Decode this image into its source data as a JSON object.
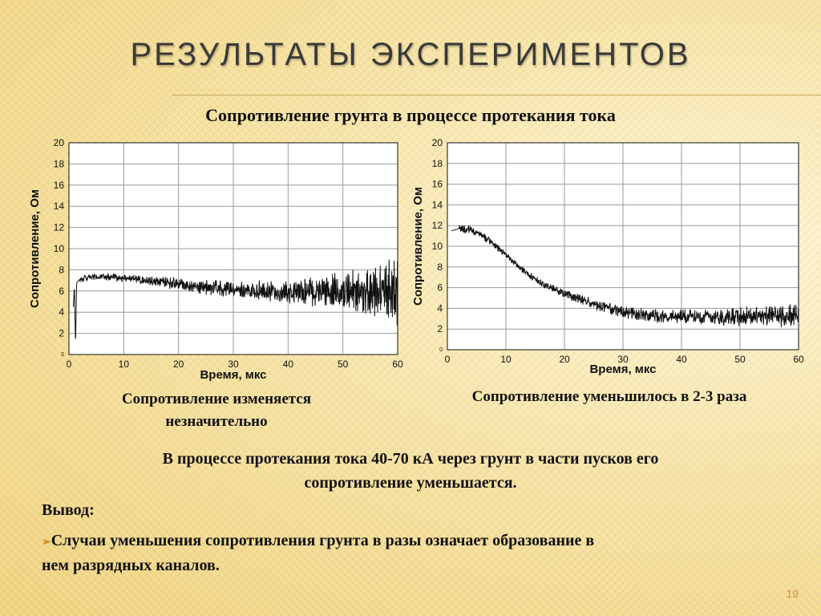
{
  "slide": {
    "title": "РЕЗУЛЬТАТЫ ЭКСПЕРИМЕНТОВ",
    "subtitle": "Сопротивление грунта в процессе протекания тока",
    "caption_left_line1": "Сопротивление изменяется",
    "caption_left_line2": "незначительно",
    "caption_right": "Сопротивление уменьшилось в 2-3 раза",
    "statement_line1": "В процессе протекания тока 40-70 кА через грунт в части пусков  его",
    "statement_line2": "сопротивление уменьшается.",
    "conclusion_label": "Вывод:",
    "bullet_marker": "➢",
    "bullet_line1": "Случаи уменьшения сопротивления грунта в разы означает образование в",
    "bullet_line2": "нем разрядных каналов.",
    "page_number": "19"
  },
  "chart_data": [
    {
      "type": "line",
      "ylabel": "Сопротивление, Ом",
      "xlabel": "Время, мкс",
      "xlim": [
        0,
        60
      ],
      "ylim": [
        0,
        20
      ],
      "x_ticks": [
        0,
        10,
        20,
        30,
        40,
        50,
        60
      ],
      "y_ticks": [
        2,
        4,
        6,
        8,
        10,
        12,
        14,
        16,
        18,
        20
      ],
      "origin_label": "0",
      "grid": true,
      "series": [
        {
          "points": [
            [
              0.8,
              4.5
            ],
            [
              1,
              6.5
            ],
            [
              1.2,
              0.8
            ],
            [
              1.4,
              6.8
            ],
            [
              2,
              7.1
            ],
            [
              4,
              7.3
            ],
            [
              6,
              7.3
            ],
            [
              8,
              7.3
            ],
            [
              10,
              7.2
            ],
            [
              12,
              7.2
            ],
            [
              14,
              7.0
            ],
            [
              16,
              6.9
            ],
            [
              18,
              6.8
            ],
            [
              20,
              6.7
            ],
            [
              22,
              6.5
            ],
            [
              24,
              6.4
            ],
            [
              26,
              6.3
            ],
            [
              28,
              6.3
            ],
            [
              30,
              6.2
            ],
            [
              32,
              6.1
            ],
            [
              34,
              6.0
            ],
            [
              36,
              6.0
            ],
            [
              38,
              5.9
            ],
            [
              40,
              5.9
            ],
            [
              42,
              5.9
            ],
            [
              44,
              5.9
            ],
            [
              46,
              5.9
            ],
            [
              48,
              5.9
            ],
            [
              50,
              5.9
            ],
            [
              52,
              5.9
            ],
            [
              54,
              5.9
            ],
            [
              56,
              5.9
            ],
            [
              58,
              5.9
            ],
            [
              60,
              6.0
            ]
          ],
          "noise": [
            [
              0,
              0.2
            ],
            [
              10,
              0.25
            ],
            [
              20,
              0.45
            ],
            [
              30,
              0.6
            ],
            [
              40,
              0.85
            ],
            [
              50,
              1.3
            ],
            [
              55,
              1.8
            ],
            [
              60,
              2.6
            ]
          ]
        }
      ]
    },
    {
      "type": "line",
      "ylabel": "Сопротивление, Ом",
      "xlabel": "Время, мкс",
      "xlim": [
        0,
        60
      ],
      "ylim": [
        0,
        20
      ],
      "x_ticks": [
        0,
        10,
        20,
        30,
        40,
        50,
        60
      ],
      "y_ticks": [
        2,
        4,
        6,
        8,
        10,
        12,
        14,
        16,
        18,
        20
      ],
      "origin_label": "0",
      "grid": true,
      "series": [
        {
          "points": [
            [
              0.7,
              11.5
            ],
            [
              2,
              11.7
            ],
            [
              4,
              11.6
            ],
            [
              6,
              11.0
            ],
            [
              8,
              10.2
            ],
            [
              10,
              9.2
            ],
            [
              12,
              8.1
            ],
            [
              14,
              7.2
            ],
            [
              16,
              6.4
            ],
            [
              18,
              5.9
            ],
            [
              20,
              5.4
            ],
            [
              22,
              5.0
            ],
            [
              24,
              4.6
            ],
            [
              26,
              4.2
            ],
            [
              28,
              3.9
            ],
            [
              30,
              3.6
            ],
            [
              32,
              3.4
            ],
            [
              34,
              3.3
            ],
            [
              36,
              3.2
            ],
            [
              38,
              3.2
            ],
            [
              40,
              3.2
            ],
            [
              42,
              3.2
            ],
            [
              44,
              3.3
            ],
            [
              46,
              3.2
            ],
            [
              48,
              3.2
            ],
            [
              50,
              3.2
            ],
            [
              52,
              3.3
            ],
            [
              54,
              3.3
            ],
            [
              56,
              3.3
            ],
            [
              58,
              3.3
            ],
            [
              60,
              3.4
            ]
          ],
          "noise": [
            [
              0,
              0.35
            ],
            [
              10,
              0.25
            ],
            [
              20,
              0.3
            ],
            [
              30,
              0.45
            ],
            [
              40,
              0.55
            ],
            [
              50,
              0.65
            ],
            [
              60,
              0.85
            ]
          ]
        }
      ]
    }
  ]
}
